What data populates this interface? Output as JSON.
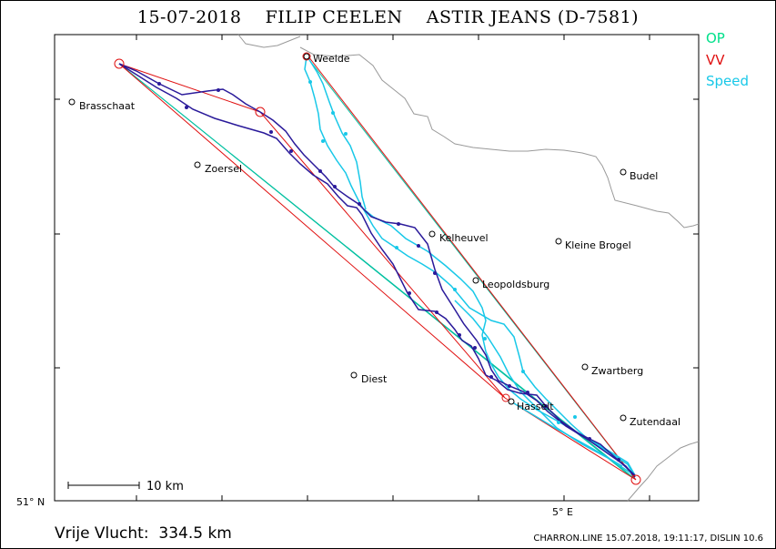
{
  "title": "15-07-2018    FILIP CEELEN    ASTIR JEANS (D-7581)",
  "legend": [
    {
      "label": "OP",
      "color": "#00e08a"
    },
    {
      "label": "VV",
      "color": "#e01010"
    },
    {
      "label": "Speed",
      "color": "#18c8e8"
    }
  ],
  "towns": [
    "Weelde",
    "Brasschaat",
    "Zoersel",
    "Budel",
    "Kelheuvel",
    "Kleine Brogel",
    "Leopoldsburg",
    "Zwartberg",
    "Diest",
    "Hasselt",
    "Zutendaal"
  ],
  "scale_label": "10  km",
  "lat_label": "51° N",
  "lon_label": "5° E",
  "distance_text": "Vrije Vlucht:  334.5 km",
  "footer": "CHARRON.LINE 15.07.2018, 19:11:17, DISLIN 10.6",
  "colors": {
    "track": "#2a1a9a",
    "speed": "#18c8e8",
    "op": "#00c0a0",
    "vv": "#e01010",
    "border": "#999999"
  }
}
